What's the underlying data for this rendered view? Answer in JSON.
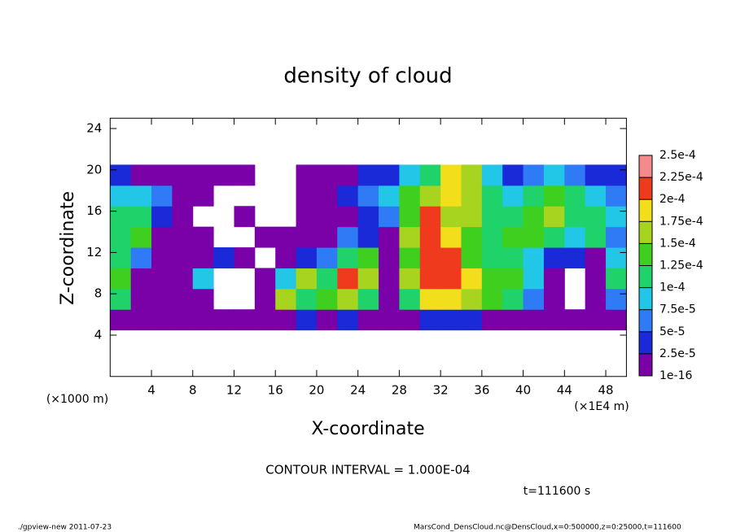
{
  "chart_data": {
    "type": "heatmap",
    "title": "density of cloud",
    "x_label": "X-coordinate",
    "y_label": "Z-coordinate",
    "x_unit": "(×1E4 m)",
    "y_unit": "(×1000 m)",
    "annotation": "CONTOUR INTERVAL = 1.000E-04",
    "time_label": "t=111600 s",
    "footer_left": "./gpview-new  2011-07-23",
    "footer_right": "MarsCond_DensCloud.nc@DensCloud,x=0:500000,z=0:25000,t=111600",
    "xlim": [
      0,
      50
    ],
    "ylim": [
      0,
      25
    ],
    "xticks": [
      4,
      8,
      12,
      16,
      20,
      24,
      28,
      32,
      36,
      40,
      44,
      48
    ],
    "yticks": [
      4,
      8,
      12,
      16,
      20,
      24
    ],
    "x": [
      1,
      3,
      5,
      7,
      9,
      11,
      13,
      15,
      17,
      19,
      21,
      23,
      25,
      27,
      29,
      31,
      33,
      35,
      37,
      39,
      41,
      43,
      45,
      47,
      49
    ],
    "y": [
      5.5,
      7.5,
      9.5,
      11.5,
      13.5,
      15.5,
      17.5,
      19.5
    ],
    "z": [
      [
        1e-05,
        1e-05,
        1e-05,
        1e-05,
        1e-05,
        1e-16,
        1e-05,
        1e-05,
        2e-05,
        3e-05,
        1e-05,
        3e-05,
        1e-05,
        1e-05,
        2e-05,
        4e-05,
        3e-05,
        3e-05,
        2e-05,
        2e-05,
        1e-05,
        1e-05,
        1e-05,
        1e-05,
        1e-05
      ],
      [
        0.00011,
        1e-16,
        1e-16,
        1e-05,
        1e-16,
        null,
        null,
        1e-16,
        0.00015,
        0.00012,
        0.00013,
        0.00016,
        0.00012,
        1e-16,
        0.00012,
        0.00018,
        0.00018,
        0.00016,
        0.00014,
        0.0001,
        6e-05,
        1e-16,
        null,
        1e-16,
        5e-05
      ],
      [
        0.00013,
        1e-16,
        1e-05,
        1e-16,
        9e-05,
        null,
        null,
        1e-16,
        9e-05,
        0.00015,
        0.00011,
        0.00021,
        0.00016,
        1e-16,
        0.00015,
        0.00022,
        0.00021,
        0.00018,
        0.00014,
        0.00013,
        8e-05,
        1e-16,
        null,
        1e-16,
        0.0001
      ],
      [
        0.00012,
        5e-05,
        2e-05,
        1e-16,
        2e-05,
        3e-05,
        1e-16,
        null,
        1e-16,
        3e-05,
        6e-05,
        0.00012,
        0.00013,
        1e-05,
        0.00013,
        0.00022,
        0.00021,
        0.00013,
        0.00011,
        0.00012,
        8e-05,
        4e-05,
        3e-05,
        2e-05,
        9e-05
      ],
      [
        0.00011,
        0.00013,
        2e-05,
        1e-16,
        1e-16,
        null,
        null,
        1e-16,
        1e-16,
        1e-16,
        1e-16,
        5e-05,
        3e-05,
        2e-05,
        0.00015,
        0.00021,
        0.00018,
        0.00014,
        0.00011,
        0.00013,
        0.00014,
        0.00012,
        9e-05,
        0.0001,
        6e-05
      ],
      [
        0.0001,
        0.00012,
        4e-05,
        1e-16,
        null,
        null,
        1e-16,
        null,
        null,
        1e-16,
        1e-16,
        2e-05,
        4e-05,
        6e-05,
        0.00014,
        0.00021,
        0.00017,
        0.00015,
        0.0001,
        0.00012,
        0.00014,
        0.00015,
        0.00011,
        0.00012,
        8e-05
      ],
      [
        8e-05,
        9e-05,
        6e-05,
        2e-05,
        1e-16,
        null,
        null,
        null,
        null,
        1e-16,
        2e-05,
        3e-05,
        6e-05,
        8e-05,
        0.00013,
        0.00016,
        0.00019,
        0.00017,
        0.00011,
        8e-05,
        0.00012,
        0.00013,
        0.0001,
        9e-05,
        6e-05
      ],
      [
        3e-05,
        2e-05,
        2e-05,
        1e-05,
        1e-05,
        1e-16,
        1e-16,
        null,
        null,
        1e-16,
        1e-05,
        2e-05,
        3e-05,
        4e-05,
        8e-05,
        0.00012,
        0.00018,
        0.00015,
        8e-05,
        4e-05,
        6e-05,
        8e-05,
        5e-05,
        4e-05,
        3e-05
      ]
    ],
    "colorbar": {
      "ticks": [
        {
          "value": 1e-16,
          "label": "1e-16"
        },
        {
          "value": 2.5e-05,
          "label": "2.5e-5"
        },
        {
          "value": 5e-05,
          "label": "5e-5"
        },
        {
          "value": 7.5e-05,
          "label": "7.5e-5"
        },
        {
          "value": 0.0001,
          "label": "1e-4"
        },
        {
          "value": 0.000125,
          "label": "1.25e-4"
        },
        {
          "value": 0.00015,
          "label": "1.5e-4"
        },
        {
          "value": 0.000175,
          "label": "1.75e-4"
        },
        {
          "value": 0.0002,
          "label": "2e-4"
        },
        {
          "value": 0.000225,
          "label": "2.25e-4"
        },
        {
          "value": 0.00025,
          "label": "2.5e-4"
        }
      ],
      "colors": [
        "#7a00a8",
        "#1a2ad8",
        "#2f7bf5",
        "#22c6e6",
        "#1fd26a",
        "#3fcf1f",
        "#a6d41f",
        "#f2de1a",
        "#ef3a1e",
        "#f28a8e"
      ]
    }
  }
}
